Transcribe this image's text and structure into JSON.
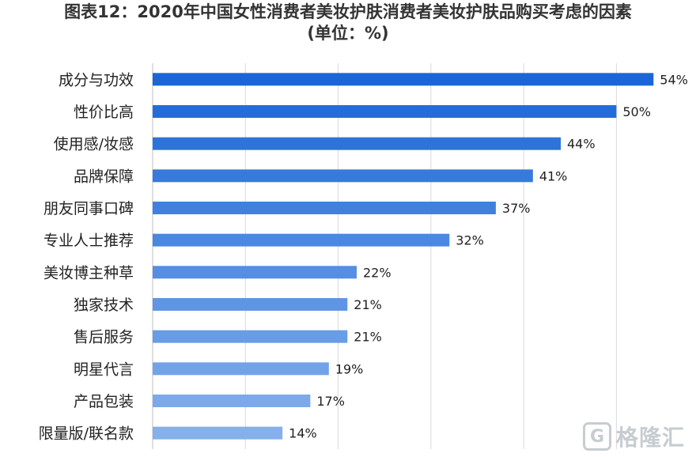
{
  "title_line1": "图表12：2020年中国女性消费者美妆护肤消费者美妆护肤品购买考虑的因素",
  "title_line2": "(单位：%)",
  "watermark": {
    "logo_letter": "G",
    "text": "格隆汇"
  },
  "chart_data": {
    "type": "bar",
    "orientation": "horizontal",
    "title": "图表12：2020年中国女性消费者美妆护肤消费者美妆护肤品购买考虑的因素",
    "subtitle": "(单位：%)",
    "categories": [
      "成分与功效",
      "性价比高",
      "使用感/妆感",
      "品牌保障",
      "朋友同事口碑",
      "专业人士推荐",
      "美妆博主种草",
      "独家技术",
      "售后服务",
      "明星代言",
      "产品包装",
      "限量版/联名款"
    ],
    "values": [
      54,
      50,
      44,
      41,
      37,
      32,
      22,
      21,
      21,
      19,
      17,
      14
    ],
    "data_labels": [
      "54%",
      "50%",
      "44%",
      "41%",
      "37%",
      "32%",
      "22%",
      "21%",
      "21%",
      "19%",
      "17%",
      "14%"
    ],
    "xlim": [
      0,
      55
    ],
    "grid": true,
    "grid_step": 10,
    "legend": "none",
    "colors": {
      "bar_top": "#1a66d6",
      "bar_bottom": "#86b0ec",
      "grid": "#d9d9d9",
      "axis": "#bfbfbf"
    }
  }
}
